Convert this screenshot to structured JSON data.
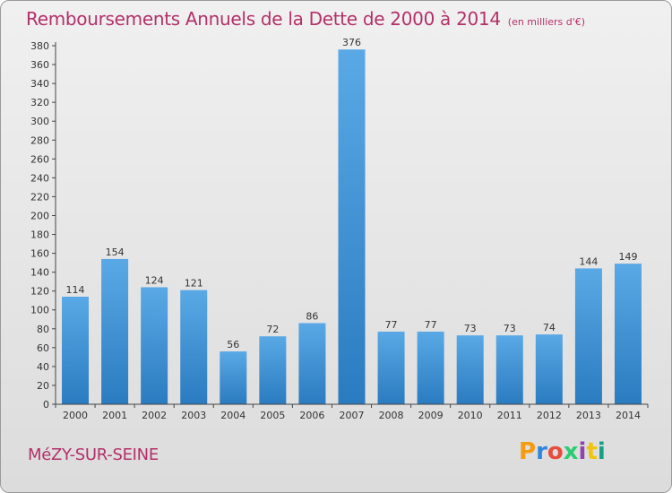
{
  "header": {
    "title": "Remboursements Annuels de la Dette de 2000 à 2014",
    "subtitle": "(en milliers d'€)"
  },
  "footer": {
    "commune": "MéZY-SUR-SEINE",
    "logo": [
      "P",
      "r",
      "o",
      "x",
      "i",
      "t",
      "i"
    ]
  },
  "colors": {
    "title": "#b4306a",
    "bar_light": "#5aa9e6",
    "bar_dark": "#2a7bc0",
    "logo": [
      "#f39c12",
      "#2e86de",
      "#e74c3c",
      "#2ecc71",
      "#8e44ad",
      "#f1c40f",
      "#16a085"
    ]
  },
  "chart_data": {
    "type": "bar",
    "title": "Remboursements Annuels de la Dette de 2000 à 2014",
    "subtitle": "(en milliers d'€)",
    "categories": [
      "2000",
      "2001",
      "2002",
      "2003",
      "2004",
      "2005",
      "2006",
      "2007",
      "2008",
      "2009",
      "2010",
      "2011",
      "2012",
      "2013",
      "2014"
    ],
    "values": [
      114,
      154,
      124,
      121,
      56,
      72,
      86,
      376,
      77,
      77,
      73,
      73,
      74,
      144,
      149
    ],
    "ylim": [
      0,
      380
    ],
    "yticks": [
      0,
      20,
      40,
      60,
      80,
      100,
      120,
      140,
      160,
      180,
      200,
      220,
      240,
      260,
      280,
      300,
      320,
      340,
      360,
      380
    ],
    "grid": false,
    "xlabel": "",
    "ylabel": ""
  }
}
